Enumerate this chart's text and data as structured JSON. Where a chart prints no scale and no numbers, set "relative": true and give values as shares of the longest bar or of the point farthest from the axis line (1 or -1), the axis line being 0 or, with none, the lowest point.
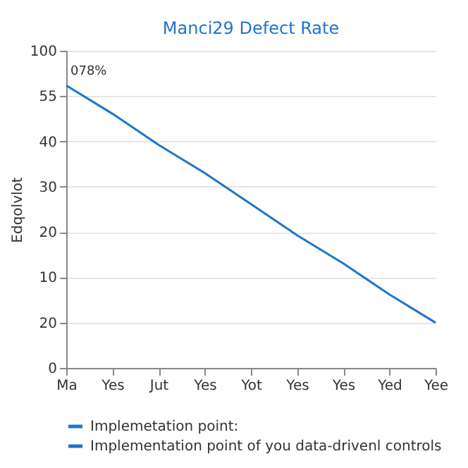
{
  "chart_data": {
    "type": "line",
    "title": "Manci29 Defect Rate",
    "ylabel": "Edqolvlot",
    "categories": [
      "Ma",
      "Yes",
      "Jut",
      "Yes",
      "Yot",
      "Yes",
      "Yes",
      "Yed",
      "Yee"
    ],
    "series": [
      {
        "name": "Implemetation point:",
        "color": "#1f74cc",
        "values": [
          1,
          0.9,
          0.79,
          0.69,
          0.58,
          0.47,
          0.37,
          0.26,
          0.16
        ]
      },
      {
        "name": "Implementation point of you data-drivenl controls",
        "color": "#1f74cc",
        "values": [
          null,
          null,
          null,
          null,
          null,
          null,
          null,
          null,
          null
        ]
      }
    ],
    "relative": true,
    "annotations": [
      "078%",
      "0",
      "20",
      "10",
      "20",
      "30",
      "40",
      "55",
      "100"
    ],
    "grid": "y",
    "legend": "bottom",
    "marker": "none",
    "line_style": "solid"
  }
}
